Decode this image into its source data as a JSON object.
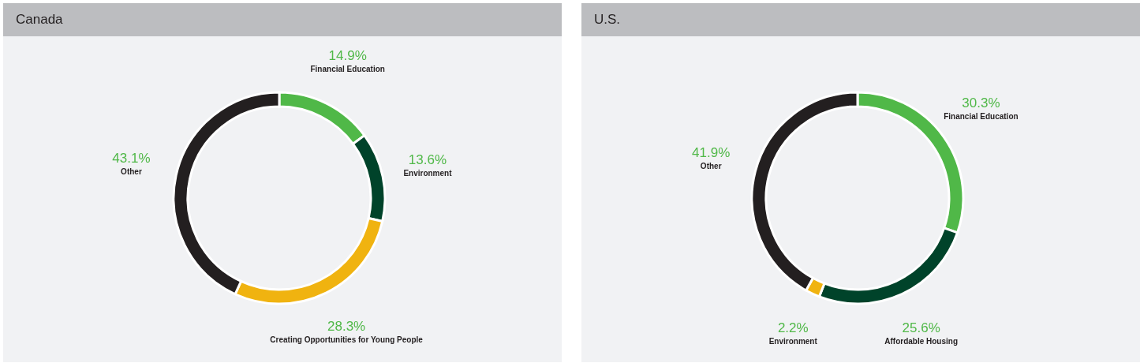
{
  "chart_data": [
    {
      "type": "donut",
      "title": "Canada",
      "categories": [
        "Financial Education",
        "Environment",
        "Creating Opportunities for Young People",
        "Other"
      ],
      "values": [
        14.9,
        13.6,
        28.3,
        43.1
      ],
      "value_labels": [
        "14.9%",
        "13.6%",
        "28.3%",
        "43.1%"
      ],
      "colors": [
        "#50b848",
        "#00432a",
        "#f0b310",
        "#231f20"
      ]
    },
    {
      "type": "donut",
      "title": "U.S.",
      "categories": [
        "Financial Education",
        "Affordable Housing",
        "Environment",
        "Other"
      ],
      "values": [
        30.3,
        25.6,
        2.2,
        41.9
      ],
      "value_labels": [
        "30.3%",
        "25.6%",
        "2.2%",
        "41.9%"
      ],
      "colors": [
        "#50b848",
        "#00432a",
        "#f0b310",
        "#231f20"
      ]
    }
  ]
}
